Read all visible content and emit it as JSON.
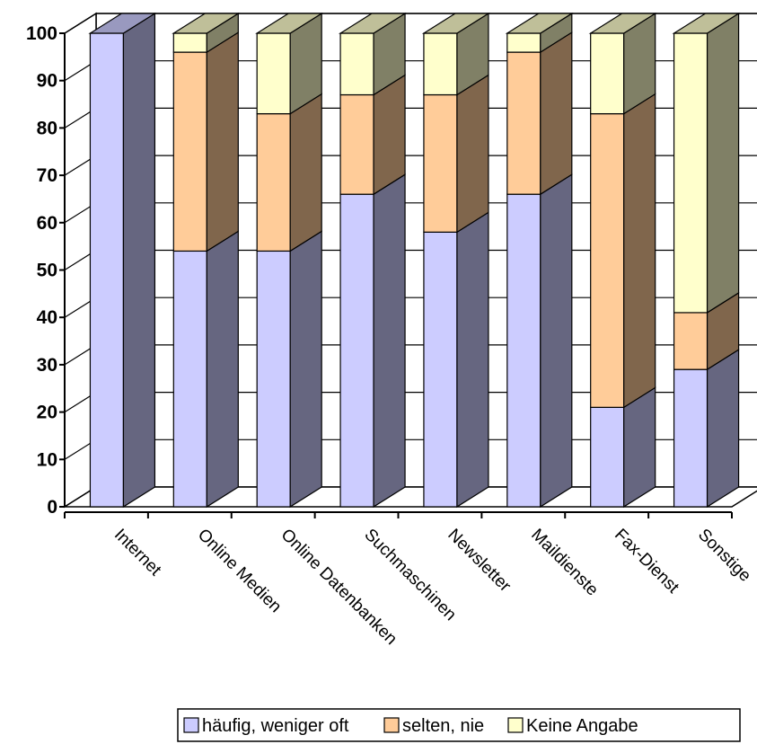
{
  "chart_data": {
    "type": "bar",
    "stacked": true,
    "three_d": true,
    "categories": [
      "Internet",
      "Online Medien",
      "Online Datenbanken",
      "Suchmaschinen",
      "Newsletter",
      "Maildienste",
      "Fax-Dienst",
      "Sonstige"
    ],
    "series": [
      {
        "name": "häufig, weniger oft",
        "values": [
          100,
          54,
          54,
          66,
          58,
          66,
          21,
          29
        ]
      },
      {
        "name": "selten, nie",
        "values": [
          0,
          42,
          29,
          21,
          29,
          30,
          62,
          12
        ]
      },
      {
        "name": "Keine Angabe",
        "values": [
          0,
          4,
          17,
          13,
          13,
          4,
          17,
          59
        ]
      }
    ],
    "ylim": [
      0,
      100
    ],
    "yticks": [
      "0",
      "10",
      "20",
      "30",
      "40",
      "50",
      "60",
      "70",
      "80",
      "90",
      "100"
    ],
    "grid": true,
    "legend_position": "bottom-right",
    "colors": {
      "front": [
        "#ccccff",
        "#ffcc99",
        "#ffffcc"
      ],
      "side": [
        "#666680",
        "#80664c",
        "#808066"
      ],
      "top": [
        "#9999bf",
        "#bf9973",
        "#bfbf99"
      ],
      "gridline": "#000000",
      "floor": "#ffffff"
    }
  }
}
